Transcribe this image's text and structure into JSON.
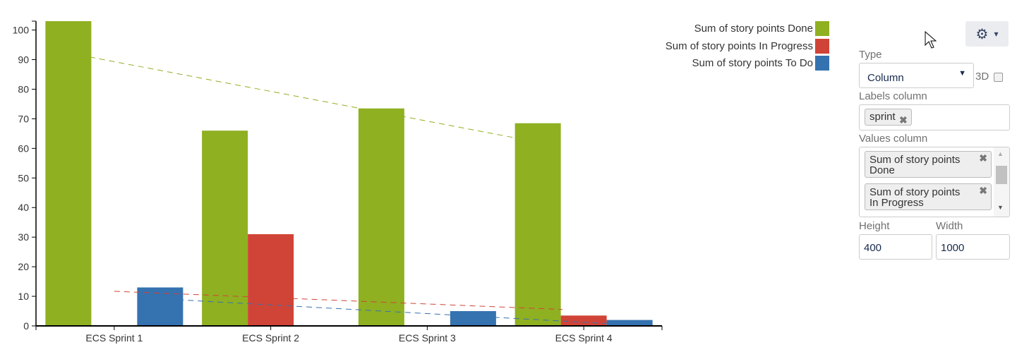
{
  "chart_data": {
    "type": "bar",
    "categories": [
      "ECS Sprint 1",
      "ECS Sprint 2",
      "ECS Sprint 3",
      "ECS Sprint 4"
    ],
    "series": [
      {
        "name": "Sum of story points Done",
        "color": "#8fb021",
        "values": [
          103,
          66,
          73.5,
          68.5
        ]
      },
      {
        "name": "Sum of story points In Progress",
        "color": "#d04437",
        "values": [
          0,
          31,
          0,
          3.5
        ]
      },
      {
        "name": "Sum of story points To Do",
        "color": "#3572b0",
        "values": [
          13,
          0,
          5,
          2
        ]
      }
    ],
    "trendlines": "linear, dashed, per series",
    "ylim": [
      0,
      103
    ],
    "yticks": [
      0,
      10,
      20,
      30,
      40,
      50,
      60,
      70,
      80,
      90,
      100
    ],
    "grid": false,
    "legend": "top-right"
  },
  "panel": {
    "type_label": "Type",
    "type_value": "Column",
    "three_d_label": "3D",
    "three_d_checked": false,
    "labels_column_label": "Labels column",
    "labels_tags": [
      "sprint"
    ],
    "values_column_label": "Values column",
    "values_tags": [
      [
        "Sum of story points",
        "Done"
      ],
      [
        "Sum of story points",
        "In Progress"
      ]
    ],
    "height_label": "Height",
    "height_value": "400",
    "width_label": "Width",
    "width_value": "1000",
    "settings_icon": "gear-icon"
  }
}
